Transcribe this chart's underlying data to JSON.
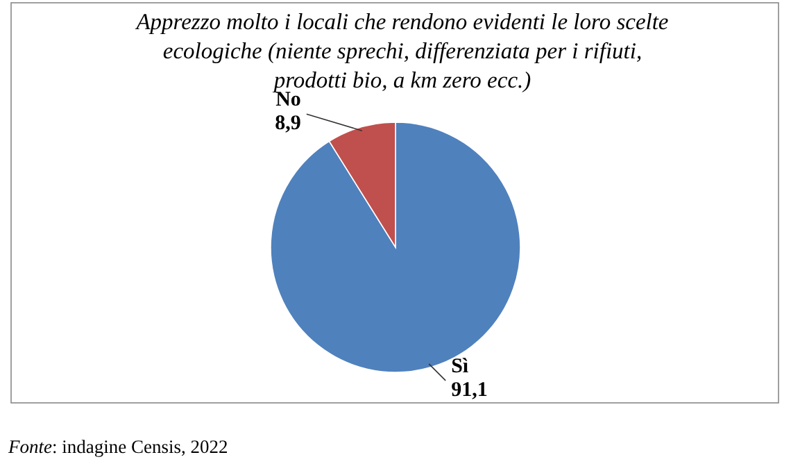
{
  "chart_data": {
    "type": "pie",
    "title": "Apprezzo molto i locali che rendono evidenti le loro scelte\necologiche (niente sprechi, differenziata per i rifiuti,\nprodotti bio, a km zero ecc.)",
    "categories": [
      "Sì",
      "No"
    ],
    "values": [
      91.1,
      8.9
    ],
    "colors": [
      "#4f81bd",
      "#c0504d"
    ],
    "value_labels": [
      "91,1",
      "8,9"
    ],
    "annotations": [
      "Fonte: indagine Censis, 2022"
    ]
  }
}
